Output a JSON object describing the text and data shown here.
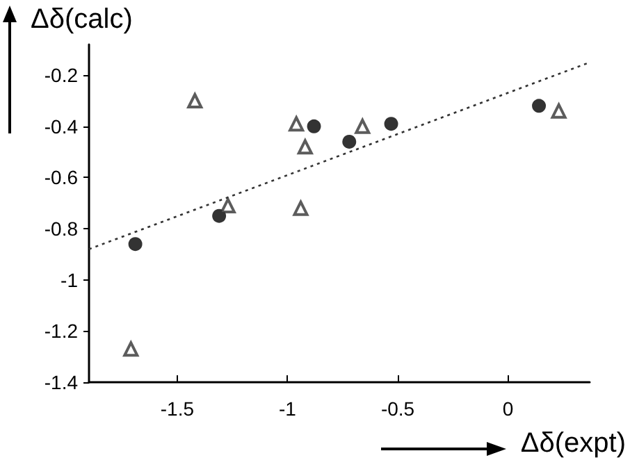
{
  "chart_data": {
    "type": "scatter",
    "xlabel": "Δδ(expt)",
    "ylabel": "Δδ(calc)",
    "xlim": [
      -1.9,
      0.37
    ],
    "xticks": [
      -1.5,
      -1,
      -0.5,
      0
    ],
    "ylim": [
      -1.4,
      -0.08
    ],
    "yticks": [
      -1.4,
      -1.2,
      -1,
      -0.8,
      -0.6,
      -0.4,
      -0.2
    ],
    "grid": false,
    "series": [
      {
        "marker": "circle",
        "color": "#000000",
        "x": [
          -1.69,
          -1.31,
          -0.88,
          -0.72,
          -0.53,
          0.14
        ],
        "values": [
          -0.86,
          -0.75,
          -0.4,
          -0.46,
          -0.39,
          -0.32
        ]
      },
      {
        "marker": "triangle",
        "color": "#333333",
        "x": [
          -1.71,
          -1.42,
          -1.27,
          -0.96,
          -0.92,
          -0.94,
          -0.66,
          0.23
        ],
        "values": [
          -1.27,
          -0.3,
          -0.71,
          -0.39,
          -0.48,
          -0.72,
          -0.4,
          -0.34
        ]
      },
      {
        "type": "line",
        "marker": "none",
        "line_style": "dotted",
        "color": "#333333",
        "x": [
          -1.9,
          0.37
        ],
        "values": [
          -0.88,
          -0.15
        ]
      }
    ]
  }
}
